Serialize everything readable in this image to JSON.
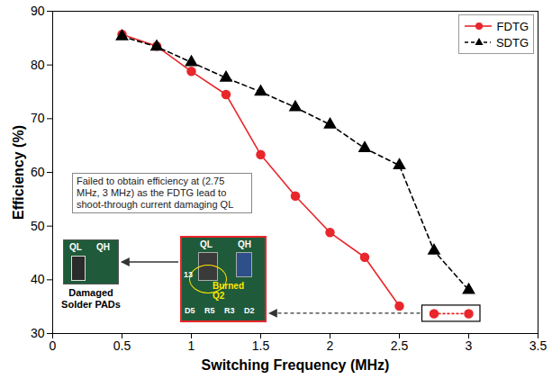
{
  "chart_data": {
    "type": "line",
    "x_label": "Switching Frequency (MHz)",
    "y_label": "Efficiency (%)",
    "x": [
      0.5,
      0.75,
      1,
      1.25,
      1.5,
      1.75,
      2,
      2.25,
      2.5,
      2.75,
      3
    ],
    "series": [
      {
        "name": "FDTG",
        "color": "#e8262b",
        "marker": "circle",
        "line_style": "solid",
        "values": [
          85.7,
          83.5,
          78.8,
          74.5,
          63.3,
          55.6,
          48.8,
          44.2,
          35.1,
          null,
          null
        ]
      },
      {
        "name": "SDTG",
        "color": "#000000",
        "marker": "triangle",
        "line_style": "dashed",
        "values": [
          85.3,
          83.4,
          80.5,
          77.6,
          75.0,
          72.1,
          68.9,
          64.5,
          61.3,
          45.4,
          38.1
        ]
      }
    ],
    "failed_points": {
      "x": [
        2.75,
        3
      ],
      "values": [
        33.7,
        33.7
      ]
    },
    "annotation": "Failed to obtain efficiency at (2.75 MHz, 3 MHz) as the FDTG lead to shoot-through current damaging QL",
    "insets": {
      "damaged": {
        "labels": [
          "QL",
          "QH"
        ],
        "caption": "Damaged Solder PADs"
      },
      "burned": {
        "labels": [
          "QL",
          "QH"
        ],
        "note": "Burned Q2",
        "markings": [
          "13",
          "D5",
          "R5",
          "R3",
          "D2"
        ]
      }
    },
    "xlim": [
      0,
      3.5
    ],
    "xticks": [
      0,
      0.5,
      1,
      1.5,
      2,
      2.5,
      3,
      3.5
    ],
    "ylim": [
      30,
      90
    ],
    "yticks": [
      30,
      40,
      50,
      60,
      70,
      80,
      90
    ],
    "grid": false,
    "legend": "top-right"
  }
}
